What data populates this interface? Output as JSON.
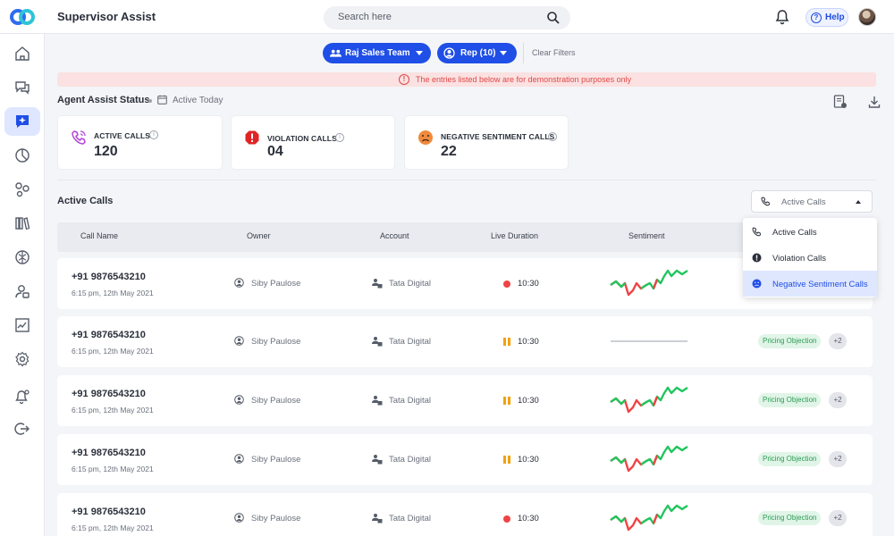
{
  "app": {
    "title": "Supervisor Assist"
  },
  "header": {
    "search_placeholder": "Search here",
    "help_label": "Help"
  },
  "filters": {
    "team_label": "Raj Sales Team",
    "rep_label": "Rep (10)",
    "clear_label": "Clear Filters"
  },
  "banner": {
    "text": "The entries listed below are for demonstration purposes only"
  },
  "status": {
    "title": "Agent Assist Status",
    "period": "Active Today"
  },
  "stats": [
    {
      "label": "ACTIVE CALLS",
      "value": "120",
      "icon": "phone-call-icon",
      "color": "#b045d6"
    },
    {
      "label": "VIOLATION CALLS",
      "value": "04",
      "icon": "violation-alert-icon",
      "color": "#e02424"
    },
    {
      "label": "NEGATIVE SENTIMENT CALLS",
      "value": "22",
      "icon": "sad-face-icon",
      "color": "#f08a3c"
    }
  ],
  "calls": {
    "title": "Active Calls",
    "filter_selected": "Active Calls",
    "columns": [
      "Call Name",
      "Owner",
      "Account",
      "Live Duration",
      "Sentiment"
    ],
    "dropdown_options": [
      {
        "label": "Active Calls",
        "icon": "phone-call-icon"
      },
      {
        "label": "Violation Calls",
        "icon": "violation-alert-icon"
      },
      {
        "label": "Negative Sentiment Calls",
        "icon": "sad-face-icon"
      }
    ],
    "rows": [
      {
        "phone": "+91 9876543210",
        "time": "6:15 pm, 12th May 2021",
        "owner": "Siby Paulose",
        "account": "Tata Digital",
        "status": "live",
        "duration": "10:30",
        "sentiment": "wave",
        "tag": "",
        "more": ""
      },
      {
        "phone": "+91 9876543210",
        "time": "6:15 pm, 12th May 2021",
        "owner": "Siby Paulose",
        "account": "Tata Digital",
        "status": "paused",
        "duration": "10:30",
        "sentiment": "flat",
        "tag": "Pricing Objection",
        "more": "+2"
      },
      {
        "phone": "+91 9876543210",
        "time": "6:15 pm, 12th May 2021",
        "owner": "Siby Paulose",
        "account": "Tata Digital",
        "status": "paused",
        "duration": "10:30",
        "sentiment": "wave",
        "tag": "Pricing Objection",
        "more": "+2"
      },
      {
        "phone": "+91 9876543210",
        "time": "6:15 pm, 12th May 2021",
        "owner": "Siby Paulose",
        "account": "Tata Digital",
        "status": "paused",
        "duration": "10:30",
        "sentiment": "wave",
        "tag": "Pricing Objection",
        "more": "+2"
      },
      {
        "phone": "+91 9876543210",
        "time": "6:15 pm, 12th May 2021",
        "owner": "Siby Paulose",
        "account": "Tata Digital",
        "status": "live",
        "duration": "10:30",
        "sentiment": "wave",
        "tag": "Pricing Objection",
        "more": "+2"
      }
    ]
  },
  "sidebar": {
    "items": [
      {
        "icon": "home-icon"
      },
      {
        "icon": "chat-icon"
      },
      {
        "icon": "agent-assist-icon",
        "active": true
      },
      {
        "icon": "pie-chart-icon"
      },
      {
        "icon": "network-icon"
      },
      {
        "icon": "library-icon"
      },
      {
        "icon": "brain-icon"
      },
      {
        "icon": "users-icon"
      },
      {
        "icon": "trend-chart-icon"
      },
      {
        "icon": "settings-icon"
      },
      {
        "icon": "notification-settings-icon"
      },
      {
        "icon": "logout-icon"
      }
    ]
  },
  "colors": {
    "accent": "#1f4fe6",
    "banner_text": "#e04747",
    "positive": "#22c55e",
    "negative": "#ef4444",
    "tag_text": "#2b9a54"
  }
}
